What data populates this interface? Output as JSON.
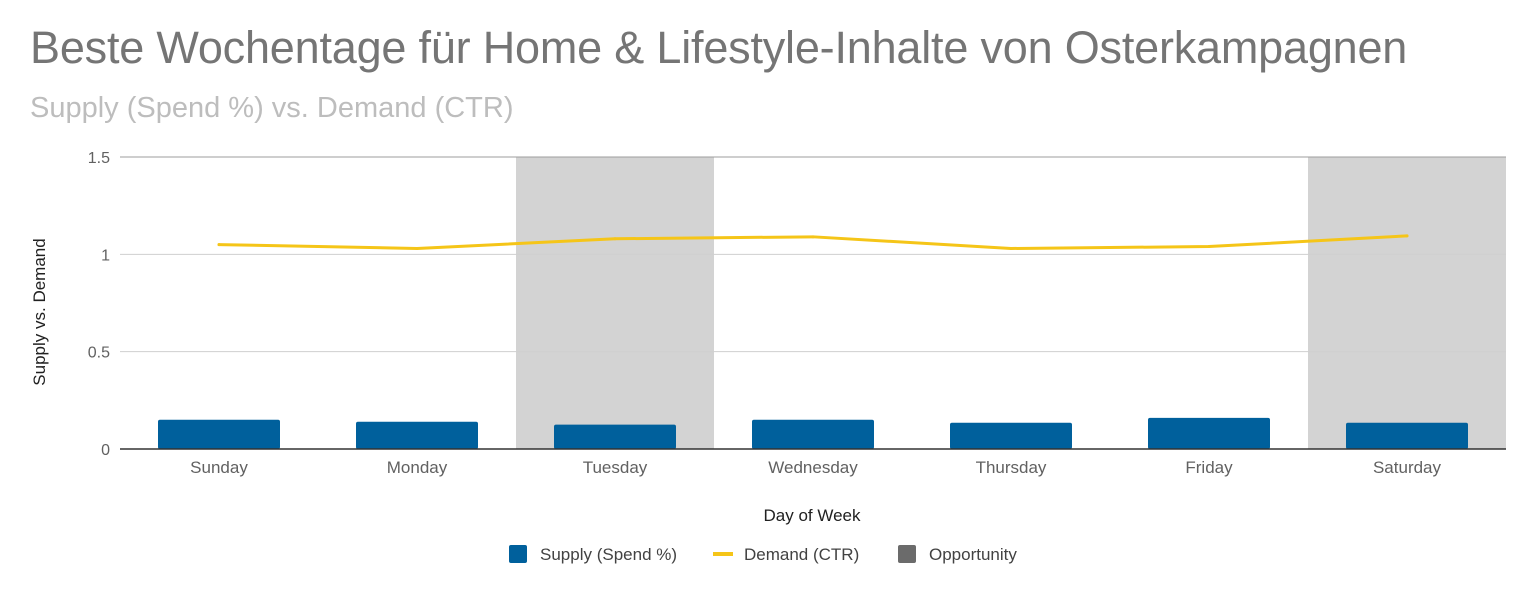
{
  "chart_data": {
    "type": "bar",
    "title": "Beste Wochentage für Home & Lifestyle-Inhalte von Osterkampagnen",
    "subtitle": "Supply (Spend %) vs. Demand (CTR)",
    "xlabel": "Day of Week",
    "ylabel": "Supply vs. Demand",
    "ylim": [
      0,
      1.5
    ],
    "yticks": [
      {
        "value": 0,
        "label": "0"
      },
      {
        "value": 0.5,
        "label": "0.5"
      },
      {
        "value": 1,
        "label": "1"
      },
      {
        "value": 1.5,
        "label": "1.5"
      }
    ],
    "categories": [
      "Sunday",
      "Monday",
      "Tuesday",
      "Wednesday",
      "Thursday",
      "Friday",
      "Saturday"
    ],
    "series": [
      {
        "name": "Supply (Spend %)",
        "type": "bar",
        "color": "#00609c",
        "values": [
          0.15,
          0.14,
          0.125,
          0.15,
          0.135,
          0.16,
          0.135
        ]
      },
      {
        "name": "Demand (CTR)",
        "type": "line",
        "color": "#f5c518",
        "values": [
          1.05,
          1.03,
          1.08,
          1.09,
          1.03,
          1.04,
          1.095
        ]
      },
      {
        "name": "Opportunity",
        "type": "bar",
        "color": "#d3d3d3",
        "legend_color": "#6b6b6b",
        "values": [
          0,
          0,
          1.5,
          0,
          0,
          0,
          1.5
        ]
      }
    ],
    "grid": true,
    "legend": "bottom"
  }
}
